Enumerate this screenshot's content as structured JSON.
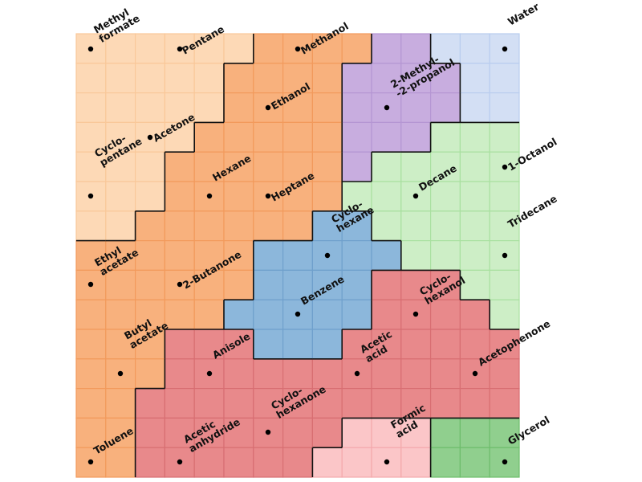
{
  "nodes": [
    {
      "lines": [
        "Methyl",
        "formate"
      ]
    },
    {
      "lines": [
        "Pentane"
      ]
    },
    {
      "lines": [
        "Methanol"
      ]
    },
    {
      "lines": [
        "Water"
      ]
    },
    {
      "lines": [
        "2-Methyl-",
        "-2-propanol"
      ]
    },
    {
      "lines": [
        "Ethanol"
      ]
    },
    {
      "lines": [
        "Acetone"
      ]
    },
    {
      "lines": [
        "Cyclo-",
        "pentane"
      ]
    },
    {
      "lines": [
        "1-Octanol"
      ]
    },
    {
      "lines": [
        "Hexane"
      ]
    },
    {
      "lines": [
        "Heptane"
      ]
    },
    {
      "lines": [
        "Decane"
      ]
    },
    {
      "lines": [
        "Tridecane"
      ]
    },
    {
      "lines": [
        "Cyclo-",
        "hexane"
      ]
    },
    {
      "lines": [
        "Ethyl",
        "acetate"
      ]
    },
    {
      "lines": [
        "2-Butanone"
      ]
    },
    {
      "lines": [
        "Benzene"
      ]
    },
    {
      "lines": [
        "Cyclo-",
        "hexanol"
      ]
    },
    {
      "lines": [
        "Butyl",
        "acetate"
      ]
    },
    {
      "lines": [
        "Anisole"
      ]
    },
    {
      "lines": [
        "Acetic",
        "acid"
      ]
    },
    {
      "lines": [
        "Acetophenone"
      ]
    },
    {
      "lines": [
        "Cyclo-",
        "hexanone"
      ]
    },
    {
      "lines": [
        "Formic",
        "acid"
      ]
    },
    {
      "lines": [
        "Glycerol"
      ]
    },
    {
      "lines": [
        "Acetic",
        "anhydride"
      ]
    },
    {
      "lines": [
        "Toluene"
      ]
    }
  ]
}
